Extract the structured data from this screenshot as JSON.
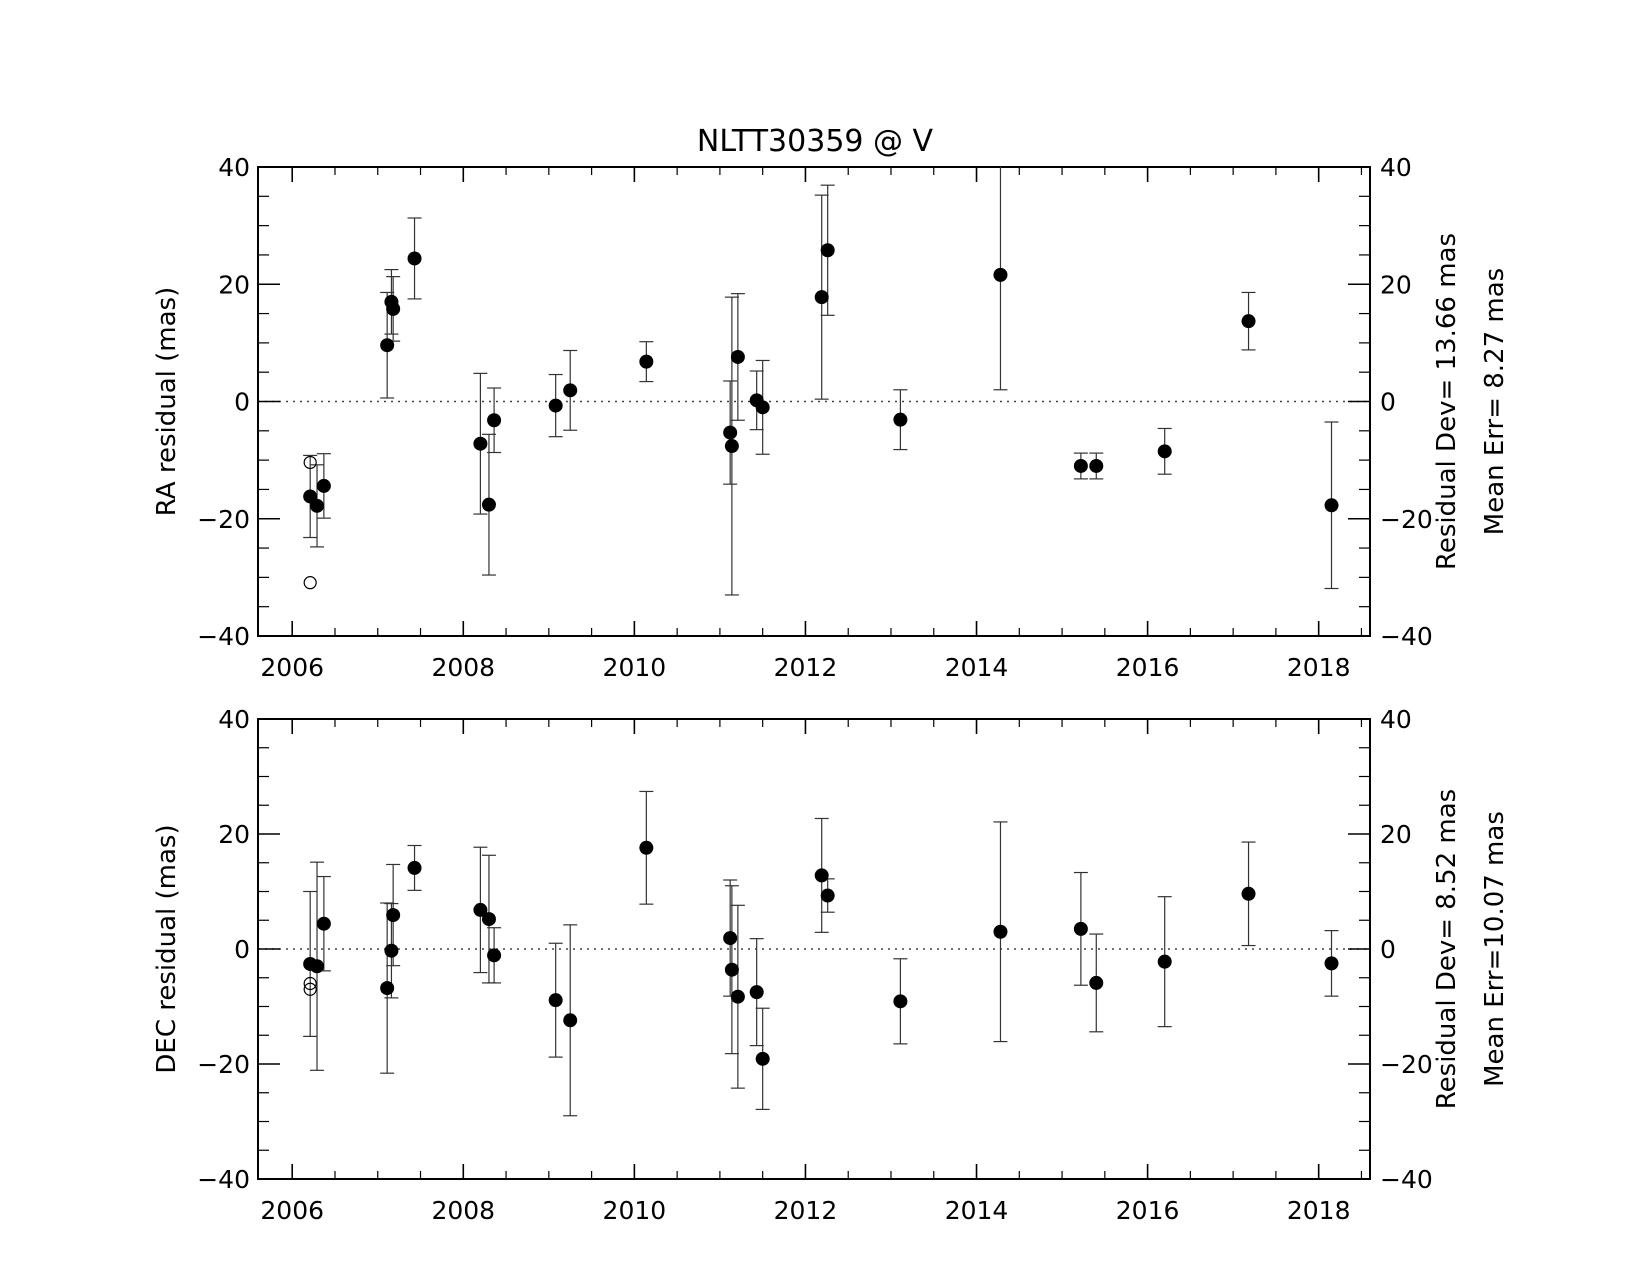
{
  "title": "NLTT30359 @ V",
  "chart_data": [
    {
      "type": "scatter",
      "panel": "ra",
      "ylabel": "RA residual (mas)",
      "xlim": [
        2005.6,
        2018.6
      ],
      "ylim": [
        -40,
        40
      ],
      "xticks": [
        2006,
        2008,
        2010,
        2012,
        2014,
        2016,
        2018
      ],
      "yticks": [
        -40,
        -20,
        0,
        20,
        40
      ],
      "xticklabels": [
        "2006",
        "2008",
        "2010",
        "2012",
        "2014",
        "2016",
        "2018"
      ],
      "yticklabels": [
        "−40",
        "−20",
        "0",
        "20",
        "40"
      ],
      "zero_line": true,
      "annotation_lines": [
        "Residual Dev=  13.66 mas",
        "Mean  Err=  8.27 mas"
      ],
      "points": [
        {
          "x": 2006.21,
          "y": -16.2,
          "err": 7.0
        },
        {
          "x": 2006.29,
          "y": -17.8,
          "err": 7.0
        },
        {
          "x": 2006.37,
          "y": -14.4,
          "err": 5.5
        },
        {
          "x": 2007.11,
          "y": 9.6,
          "err": 9.0
        },
        {
          "x": 2007.16,
          "y": 17.0,
          "err": 5.5
        },
        {
          "x": 2007.18,
          "y": 15.8,
          "err": 5.5
        },
        {
          "x": 2007.43,
          "y": 24.4,
          "err": 6.9
        },
        {
          "x": 2008.2,
          "y": -7.2,
          "err": 12.0
        },
        {
          "x": 2008.3,
          "y": -17.6,
          "err": 12.0
        },
        {
          "x": 2008.36,
          "y": -3.2,
          "err": 5.5
        },
        {
          "x": 2009.08,
          "y": -0.7,
          "err": 5.3
        },
        {
          "x": 2009.25,
          "y": 1.9,
          "err": 6.8
        },
        {
          "x": 2010.14,
          "y": 6.8,
          "err": 3.4
        },
        {
          "x": 2011.12,
          "y": -5.3,
          "err": 8.8
        },
        {
          "x": 2011.14,
          "y": -7.6,
          "err": 25.4
        },
        {
          "x": 2011.21,
          "y": 7.6,
          "err": 10.8
        },
        {
          "x": 2011.43,
          "y": 0.2,
          "err": 5.0
        },
        {
          "x": 2011.5,
          "y": -1.0,
          "err": 8.0
        },
        {
          "x": 2012.19,
          "y": 17.8,
          "err": 17.4
        },
        {
          "x": 2012.26,
          "y": 25.8,
          "err": 11.1
        },
        {
          "x": 2013.11,
          "y": -3.1,
          "err": 5.1
        },
        {
          "x": 2014.28,
          "y": 21.6,
          "err": 19.6
        },
        {
          "x": 2015.22,
          "y": -11.0,
          "err": 2.2
        },
        {
          "x": 2015.4,
          "y": -11.0,
          "err": 2.2
        },
        {
          "x": 2016.2,
          "y": -8.5,
          "err": 3.9
        },
        {
          "x": 2017.18,
          "y": 13.7,
          "err": 4.9
        },
        {
          "x": 2018.15,
          "y": -17.7,
          "err": 14.2
        }
      ],
      "rejected_points": [
        {
          "x": 2006.21,
          "y": -10.4
        },
        {
          "x": 2006.21,
          "y": -30.9
        }
      ]
    },
    {
      "type": "scatter",
      "panel": "dec",
      "ylabel": "DEC residual (mas)",
      "xlim": [
        2005.6,
        2018.6
      ],
      "ylim": [
        -40,
        40
      ],
      "xticks": [
        2006,
        2008,
        2010,
        2012,
        2014,
        2016,
        2018
      ],
      "yticks": [
        -40,
        -20,
        0,
        20,
        40
      ],
      "xticklabels": [
        "2006",
        "2008",
        "2010",
        "2012",
        "2014",
        "2016",
        "2018"
      ],
      "yticklabels": [
        "−40",
        "−20",
        "0",
        "20",
        "40"
      ],
      "zero_line": true,
      "annotation_lines": [
        "Residual Dev=   8.52 mas",
        "Mean  Err=10.07 mas"
      ],
      "points": [
        {
          "x": 2006.21,
          "y": -2.6,
          "err": 12.6
        },
        {
          "x": 2006.29,
          "y": -3.0,
          "err": 18.1
        },
        {
          "x": 2006.37,
          "y": 4.4,
          "err": 8.2
        },
        {
          "x": 2007.11,
          "y": -6.8,
          "err": 14.8
        },
        {
          "x": 2007.16,
          "y": -0.3,
          "err": 8.2
        },
        {
          "x": 2007.18,
          "y": 5.9,
          "err": 8.8
        },
        {
          "x": 2007.43,
          "y": 14.1,
          "err": 3.9
        },
        {
          "x": 2008.2,
          "y": 6.8,
          "err": 10.9
        },
        {
          "x": 2008.3,
          "y": 5.2,
          "err": 11.1
        },
        {
          "x": 2008.36,
          "y": -1.1,
          "err": 4.8
        },
        {
          "x": 2009.08,
          "y": -8.9,
          "err": 9.9
        },
        {
          "x": 2009.25,
          "y": -12.4,
          "err": 16.6
        },
        {
          "x": 2010.14,
          "y": 17.6,
          "err": 9.8
        },
        {
          "x": 2011.12,
          "y": 1.9,
          "err": 10.1
        },
        {
          "x": 2011.14,
          "y": -3.6,
          "err": 14.6
        },
        {
          "x": 2011.21,
          "y": -8.3,
          "err": 15.9
        },
        {
          "x": 2011.43,
          "y": -7.5,
          "err": 9.3
        },
        {
          "x": 2011.5,
          "y": -19.1,
          "err": 8.8
        },
        {
          "x": 2012.19,
          "y": 12.8,
          "err": 9.9
        },
        {
          "x": 2012.26,
          "y": 9.3,
          "err": 2.9
        },
        {
          "x": 2013.11,
          "y": -9.1,
          "err": 7.4
        },
        {
          "x": 2014.28,
          "y": 3.0,
          "err": 19.1
        },
        {
          "x": 2015.22,
          "y": 3.5,
          "err": 9.8
        },
        {
          "x": 2015.4,
          "y": -5.9,
          "err": 8.5
        },
        {
          "x": 2016.2,
          "y": -2.2,
          "err": 11.3
        },
        {
          "x": 2017.18,
          "y": 9.6,
          "err": 9.0
        },
        {
          "x": 2018.15,
          "y": -2.5,
          "err": 5.7
        }
      ],
      "rejected_points": [
        {
          "x": 2006.21,
          "y": -6.0
        },
        {
          "x": 2006.21,
          "y": -7.0
        }
      ]
    }
  ]
}
